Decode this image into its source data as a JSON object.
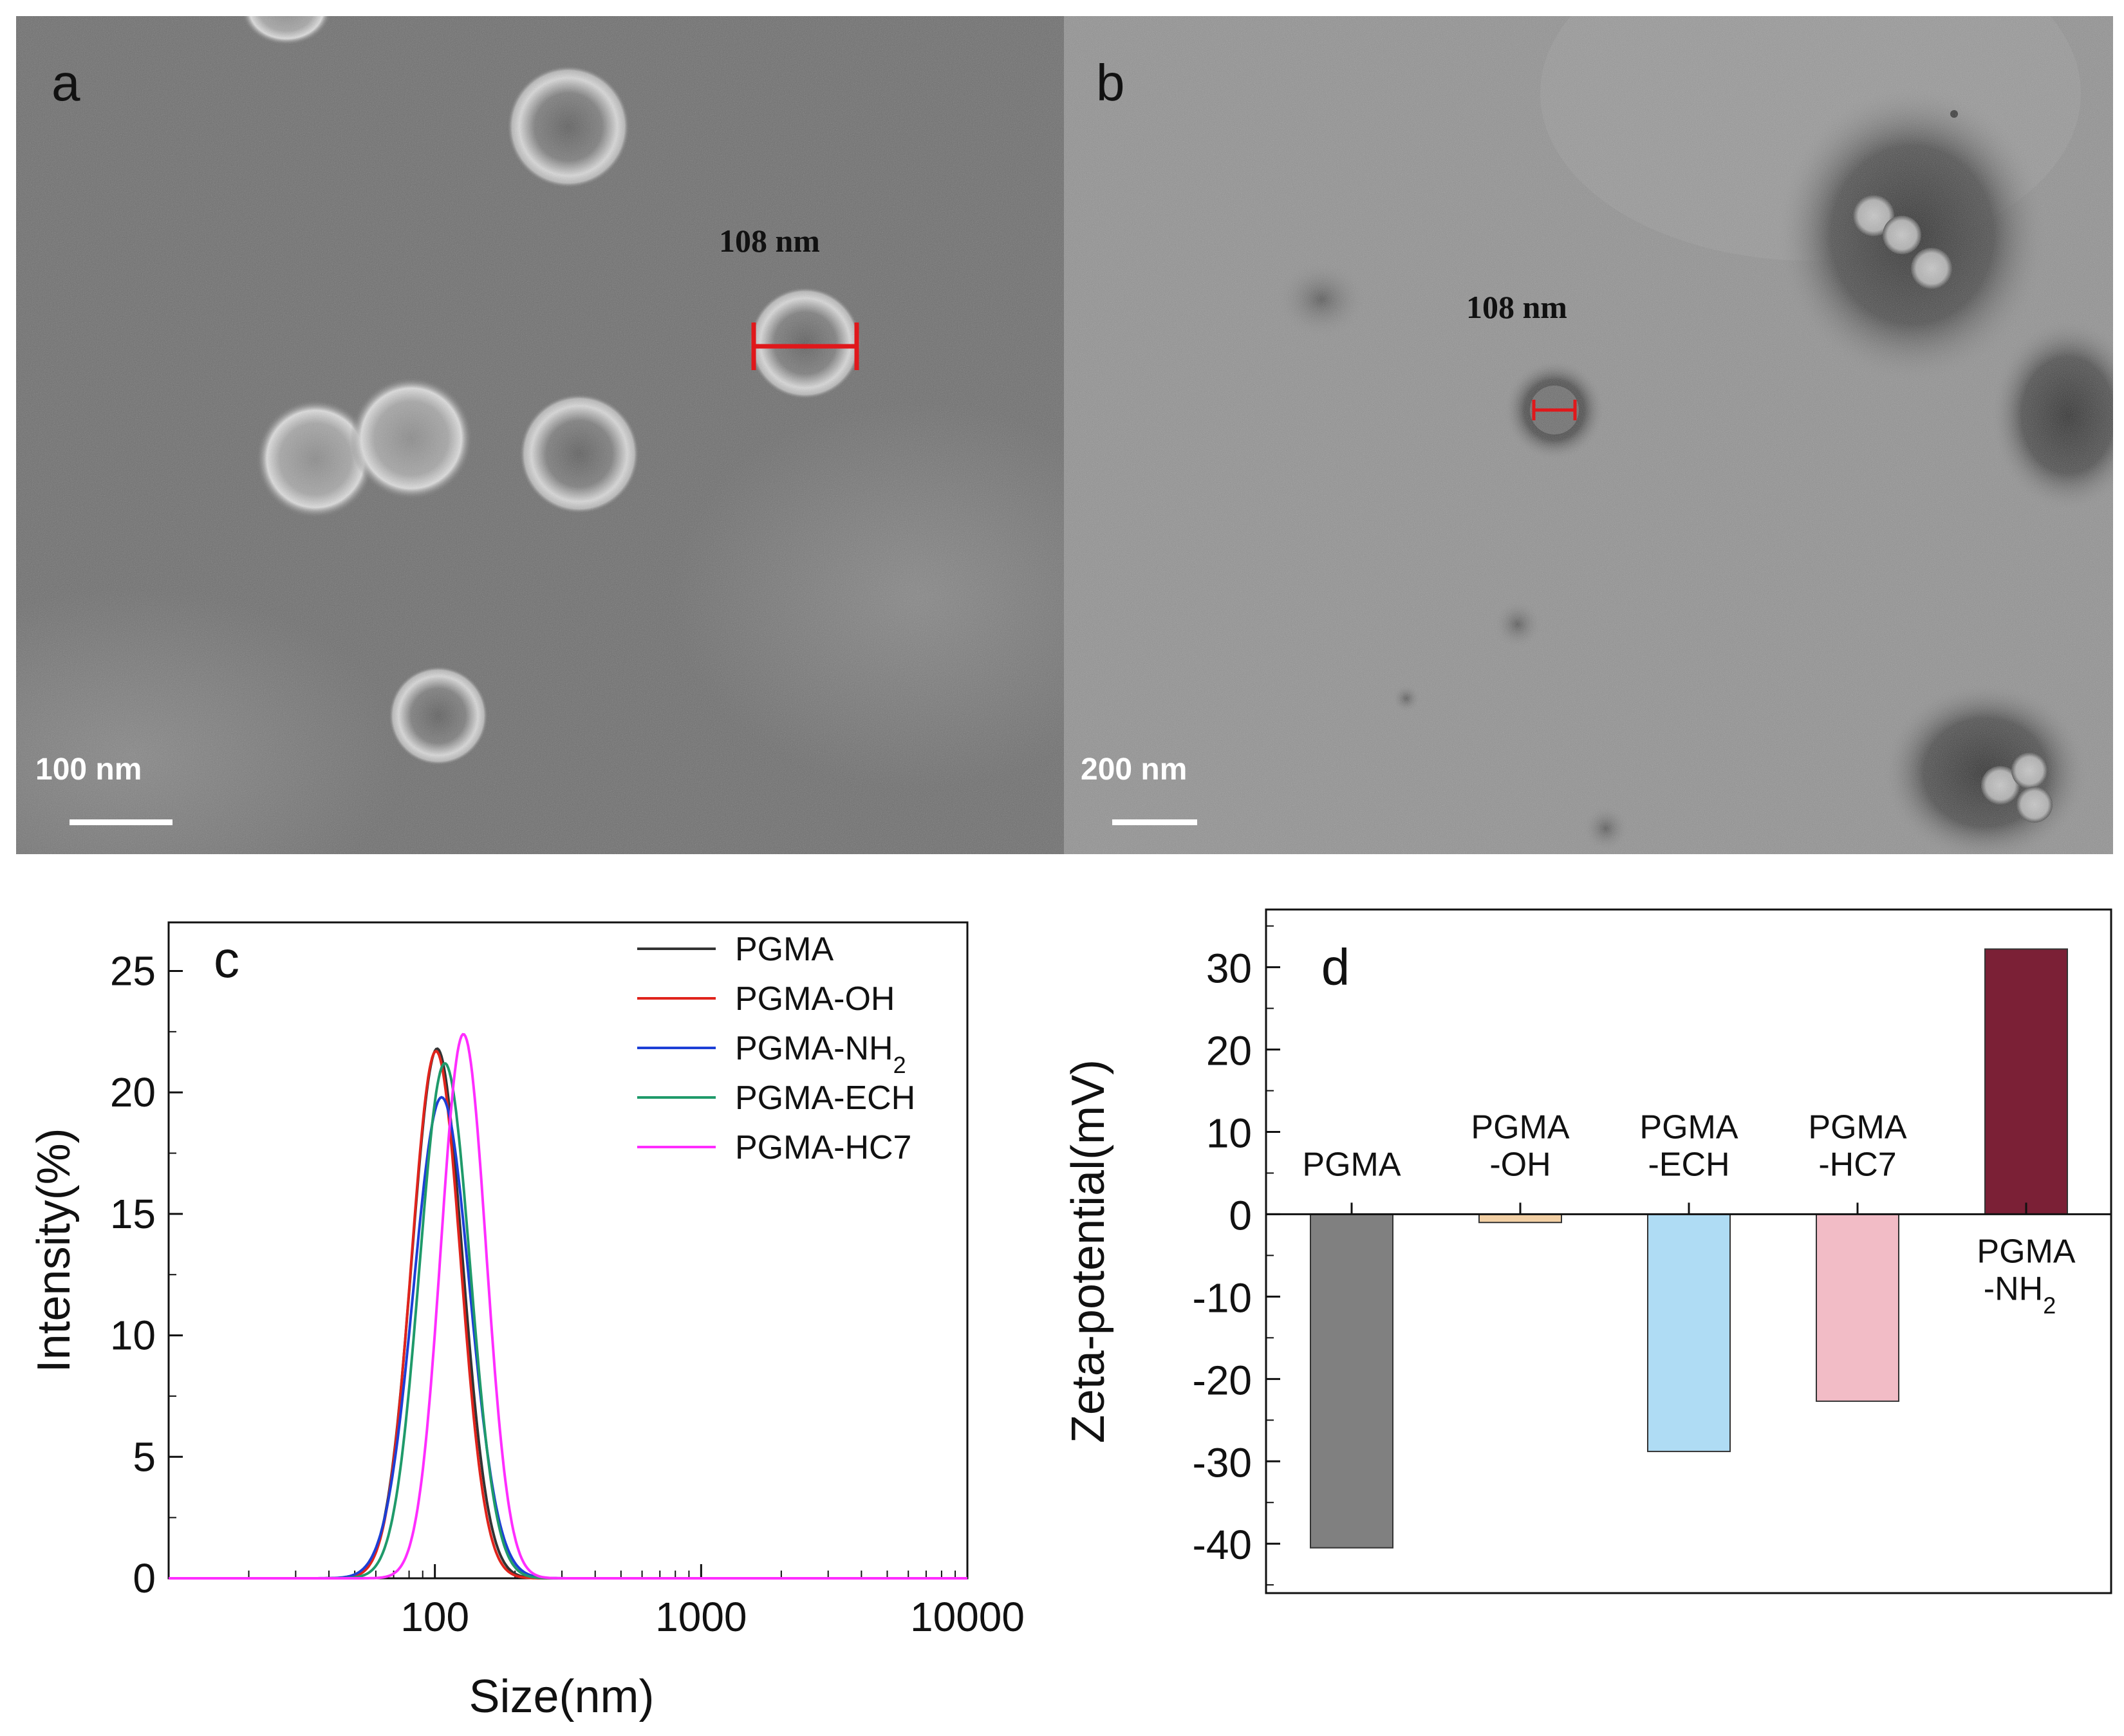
{
  "panel_a": {
    "letter": "a",
    "measurement_label": "108 nm",
    "scale_bar_label": "100 nm"
  },
  "panel_b": {
    "letter": "b",
    "measurement_label": "108 nm",
    "scale_bar_label": "200 nm"
  },
  "chart_data": [
    {
      "type": "line",
      "panel_letter": "c",
      "xlabel": "Size(nm)",
      "ylabel": "Intensity(%)",
      "x_scale": "log",
      "xlim": [
        10,
        10000
      ],
      "ylim": [
        0,
        27
      ],
      "x_ticks": [
        100,
        1000,
        10000
      ],
      "x_tick_labels": [
        "100",
        "1000",
        "10000"
      ],
      "y_ticks": [
        0,
        5,
        10,
        15,
        20,
        25
      ],
      "y_tick_labels": [
        "0",
        "5",
        "10",
        "15",
        "20",
        "25"
      ],
      "legend_position": "top-right",
      "series": [
        {
          "name": "PGMA",
          "color": "#333333",
          "peak_x": 102,
          "peak_y": 21.8,
          "width_decades": 0.095
        },
        {
          "name": "PGMA-OH",
          "color": "#e0241c",
          "peak_x": 101,
          "peak_y": 21.7,
          "width_decades": 0.092
        },
        {
          "name": "PGMA-NH2",
          "name_main": "PGMA-NH",
          "name_sub": "2",
          "color": "#1d3fd6",
          "peak_x": 106,
          "peak_y": 19.8,
          "width_decades": 0.105
        },
        {
          "name": "PGMA-ECH",
          "color": "#1f9a6a",
          "peak_x": 109,
          "peak_y": 21.2,
          "width_decades": 0.095
        },
        {
          "name": "PGMA-HC7",
          "color": "#ff2dff",
          "peak_x": 128,
          "peak_y": 22.4,
          "width_decades": 0.085
        }
      ]
    },
    {
      "type": "bar",
      "panel_letter": "d",
      "ylabel": "Zeta-potential(mV)",
      "ylim": [
        -46,
        37
      ],
      "y_ticks": [
        -40,
        -30,
        -20,
        -10,
        0,
        10,
        20,
        30
      ],
      "y_tick_labels": [
        "-40",
        "-30",
        "-20",
        "-10",
        "0",
        "10",
        "20",
        "30"
      ],
      "categories": [
        "PGMA",
        "PGMA-OH",
        "PGMA-ECH",
        "PGMA-HC7",
        "PGMA-NH2"
      ],
      "category_label_lines": [
        [
          "PGMA"
        ],
        [
          "PGMA",
          "-OH"
        ],
        [
          "PGMA",
          "-ECH"
        ],
        [
          "PGMA",
          "-HC7"
        ],
        [
          "PGMA",
          "-NH",
          "2"
        ]
      ],
      "values": [
        -40.5,
        -1.0,
        -28.8,
        -22.7,
        32.2
      ],
      "colors": [
        "#808080",
        "#f2cfa4",
        "#afdcf4",
        "#f2bcc6",
        "#7b2036"
      ]
    }
  ]
}
